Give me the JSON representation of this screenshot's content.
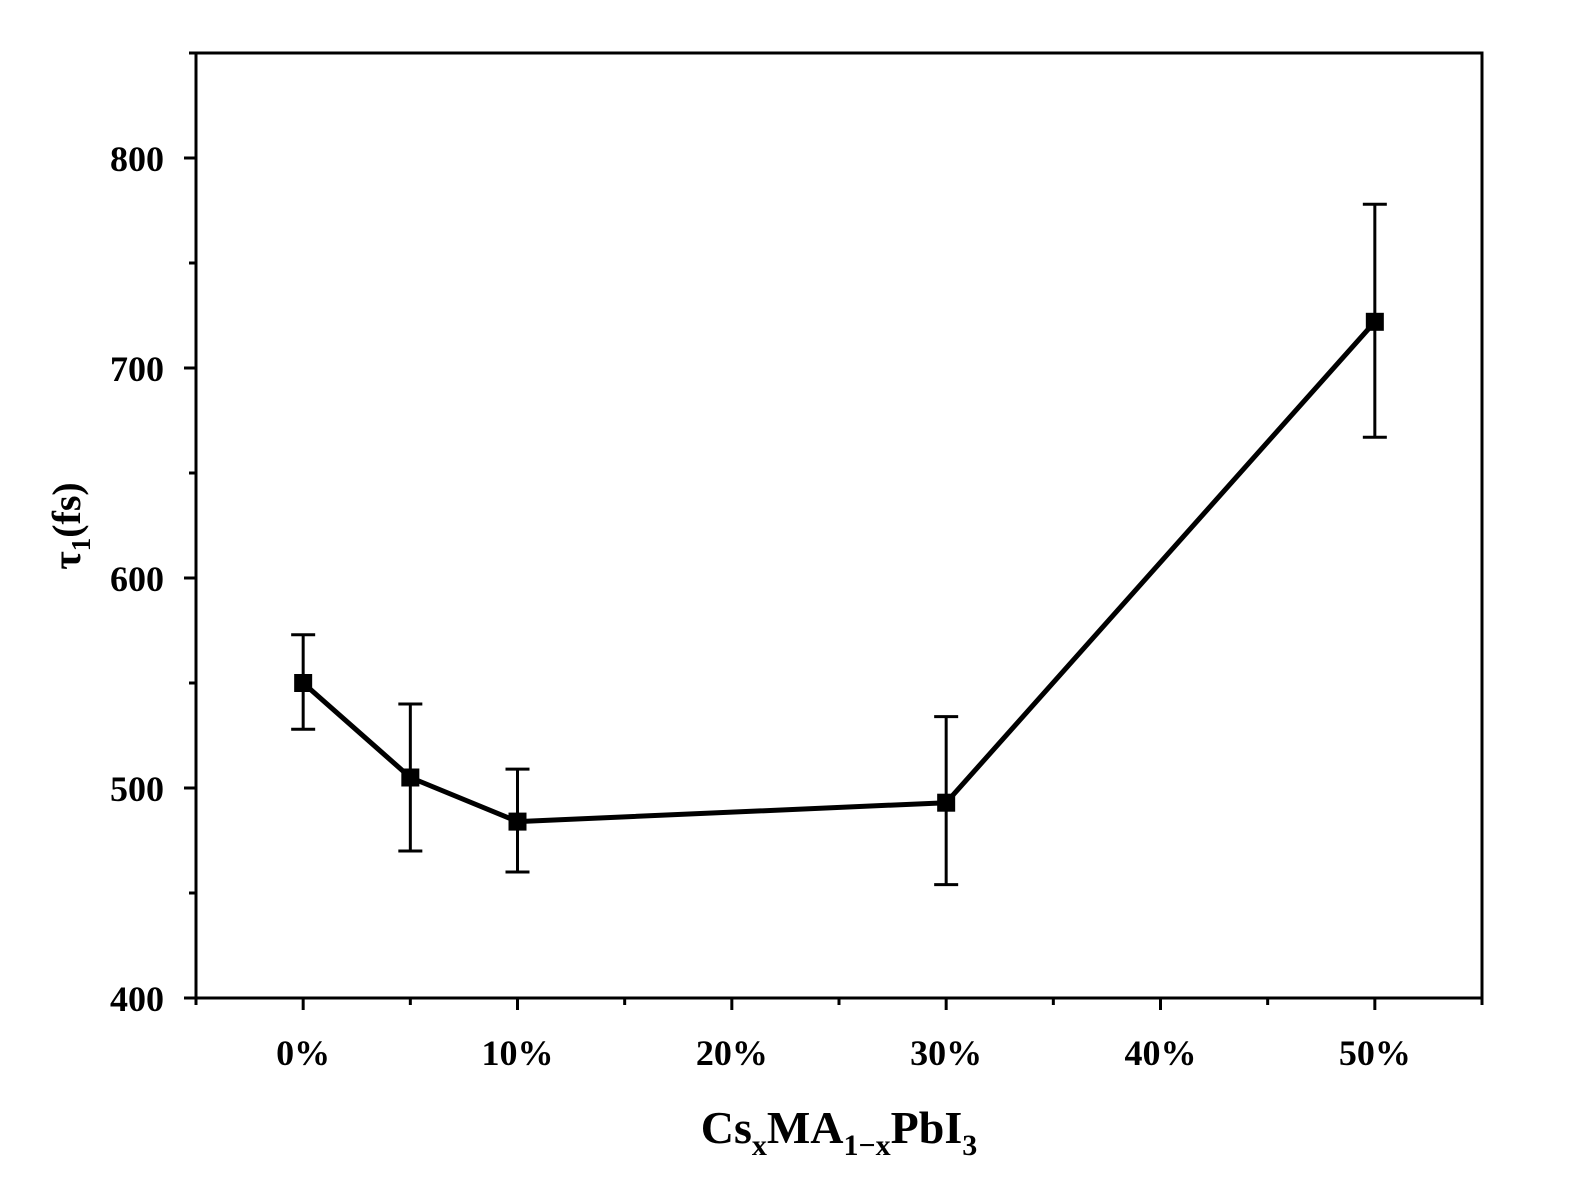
{
  "chart_data": {
    "type": "line",
    "title": "",
    "xlabel": {
      "base1": "Cs",
      "sub1": "x",
      "base2": "MA",
      "sub2": "1−x",
      "base3": "PbI",
      "sub3": "3"
    },
    "ylabel": {
      "base": "τ",
      "sub": "1",
      "unit": "(fs)"
    },
    "xlim": [
      -0.05,
      0.55
    ],
    "ylim": [
      400,
      850
    ],
    "x_ticks": [
      0,
      0.1,
      0.2,
      0.3,
      0.4,
      0.5
    ],
    "x_tick_labels": [
      "0%",
      "10%",
      "20%",
      "30%",
      "40%",
      "50%"
    ],
    "x_minor_ticks": [
      -0.05,
      0.05,
      0.15,
      0.25,
      0.35,
      0.45,
      0.55
    ],
    "y_ticks": [
      400,
      500,
      600,
      700,
      800
    ],
    "y_tick_labels": [
      "400",
      "500",
      "600",
      "700",
      "800"
    ],
    "y_minor_ticks": [
      450,
      550,
      650,
      750,
      850
    ],
    "grid": false,
    "series": [
      {
        "name": "tau1",
        "x": [
          0,
          0.05,
          0.1,
          0.3,
          0.5
        ],
        "y": [
          550,
          505,
          484,
          493,
          722
        ],
        "err_low": [
          528,
          470,
          460,
          454,
          667
        ],
        "err_high": [
          573,
          540,
          509,
          534,
          778
        ],
        "color": "#000000",
        "marker": "square"
      }
    ]
  }
}
